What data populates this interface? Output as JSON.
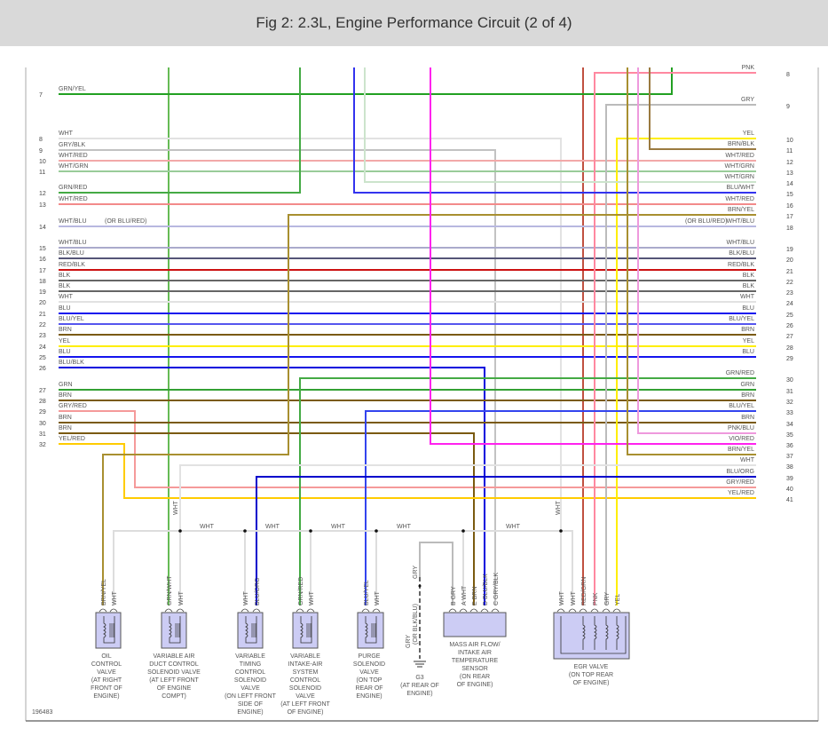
{
  "header": {
    "title": "Fig 2: 2.3L, Engine Performance Circuit (2 of 4)"
  },
  "figure_id": "196483",
  "note_or": "(OR BLU/RED)",
  "left_wires": [
    {
      "num": "7",
      "label": "GRN/YEL",
      "color": "#22a022"
    },
    {
      "num": "8",
      "label": "WHT",
      "color": "#e2e2e2"
    },
    {
      "num": "9",
      "label": "GRY/BLK",
      "color": "#c2c2c2"
    },
    {
      "num": "10",
      "label": "WHT/RED",
      "color": "#f2a8a8"
    },
    {
      "num": "11",
      "label": "WHT/GRN",
      "color": "#99cc99"
    },
    {
      "num": "12",
      "label": "GRN/RED",
      "color": "#44aa44"
    },
    {
      "num": "13",
      "label": "WHT/RED",
      "color": "#f38a8a"
    },
    {
      "num": "14",
      "label": "WHT/BLU",
      "color": "#b8b8e0"
    },
    {
      "num": "15",
      "label": "WHT/BLU",
      "color": "#aaaacc"
    },
    {
      "num": "16",
      "label": "BLK/BLU",
      "color": "#555577"
    },
    {
      "num": "17",
      "label": "RED/BLK",
      "color": "#cc1111"
    },
    {
      "num": "18",
      "label": "BLK",
      "color": "#666666"
    },
    {
      "num": "19",
      "label": "BLK",
      "color": "#666666"
    },
    {
      "num": "20",
      "label": "WHT",
      "color": "#e2e2e2"
    },
    {
      "num": "21",
      "label": "BLU",
      "color": "#1515ee"
    },
    {
      "num": "22",
      "label": "BLU/YEL",
      "color": "#5555ee"
    },
    {
      "num": "23",
      "label": "BRN",
      "color": "#7a5a10"
    },
    {
      "num": "24",
      "label": "YEL",
      "color": "#ffee00"
    },
    {
      "num": "25",
      "label": "BLU",
      "color": "#1515ee"
    },
    {
      "num": "26",
      "label": "BLU/BLK",
      "color": "#0000dd"
    },
    {
      "num": "27",
      "label": "GRN",
      "color": "#33a033"
    },
    {
      "num": "28",
      "label": "BRN",
      "color": "#7a5a10"
    },
    {
      "num": "29",
      "label": "GRY/RED",
      "color": "#f59a9a"
    },
    {
      "num": "30",
      "label": "BRN",
      "color": "#7a5a10"
    },
    {
      "num": "31",
      "label": "BRN",
      "color": "#7a5a10"
    },
    {
      "num": "32",
      "label": "YEL/RED",
      "color": "#ffcc00"
    }
  ],
  "right_wires": [
    {
      "num": "8",
      "label": "PNK",
      "color": "#ff88a0"
    },
    {
      "num": "9",
      "label": "GRY",
      "color": "#bbbbbb"
    },
    {
      "num": "10",
      "label": "YEL",
      "color": "#ffee00"
    },
    {
      "num": "11",
      "label": "BRN/BLK",
      "color": "#9a7a40"
    },
    {
      "num": "12",
      "label": "WHT/RED",
      "color": "#f2a8a8"
    },
    {
      "num": "13",
      "label": "WHT/GRN",
      "color": "#99cc99"
    },
    {
      "num": "14",
      "label": "WHT/GRN",
      "color": "#cce4cc"
    },
    {
      "num": "15",
      "label": "BLU/WHT",
      "color": "#3333ee"
    },
    {
      "num": "16",
      "label": "WHT/RED",
      "color": "#f38a8a"
    },
    {
      "num": "17",
      "label": "BRN/YEL",
      "color": "#a88f30"
    },
    {
      "num": "18",
      "label": "WHT/BLU",
      "color": "#b8b8e0"
    },
    {
      "num": "19",
      "label": "WHT/BLU",
      "color": "#aaaacc"
    },
    {
      "num": "20",
      "label": "BLK/BLU",
      "color": "#555577"
    },
    {
      "num": "21",
      "label": "RED/BLK",
      "color": "#cc1111"
    },
    {
      "num": "22",
      "label": "BLK",
      "color": "#666666"
    },
    {
      "num": "23",
      "label": "BLK",
      "color": "#666666"
    },
    {
      "num": "24",
      "label": "WHT",
      "color": "#e2e2e2"
    },
    {
      "num": "25",
      "label": "BLU",
      "color": "#1515ee"
    },
    {
      "num": "26",
      "label": "BLU/YEL",
      "color": "#5555ee"
    },
    {
      "num": "27",
      "label": "BRN",
      "color": "#7a5a10"
    },
    {
      "num": "28",
      "label": "YEL",
      "color": "#ffee00"
    },
    {
      "num": "29",
      "label": "BLU",
      "color": "#1515ee"
    },
    {
      "num": "30",
      "label": "GRN/RED",
      "color": "#44aa44"
    },
    {
      "num": "31",
      "label": "GRN",
      "color": "#33a033"
    },
    {
      "num": "32",
      "label": "BRN",
      "color": "#7a5a10"
    },
    {
      "num": "33",
      "label": "BLU/YEL",
      "color": "#3344ee"
    },
    {
      "num": "34",
      "label": "BRN",
      "color": "#7a5a10"
    },
    {
      "num": "35",
      "label": "PNK/BLU",
      "color": "#ee99dd"
    },
    {
      "num": "36",
      "label": "VIO/RED",
      "color": "#ff22ee"
    },
    {
      "num": "37",
      "label": "BRN/YEL",
      "color": "#a88f30"
    },
    {
      "num": "38",
      "label": "WHT",
      "color": "#e2e2e2"
    },
    {
      "num": "39",
      "label": "BLU/ORG",
      "color": "#0000cc"
    },
    {
      "num": "40",
      "label": "GRY/RED",
      "color": "#f59a9a"
    },
    {
      "num": "41",
      "label": "YEL/RED",
      "color": "#ffcc00"
    }
  ],
  "other_wires": [
    {
      "label": "GRN/WHT",
      "color": "#66bb55"
    },
    {
      "label": "RED/GRN",
      "color": "#c05040"
    }
  ],
  "bus": {
    "label": "WHT",
    "color": "#dddddd",
    "vertical_labels": [
      "WHT",
      "WHT"
    ]
  },
  "components": [
    {
      "name": "oil-control-valve",
      "pins": [
        "BRN/YEL",
        "WHT"
      ],
      "label": [
        "OIL",
        "CONTROL",
        "VALVE",
        "(AT RIGHT",
        "FRONT OF",
        "ENGINE)"
      ]
    },
    {
      "name": "variable-air-duct-control-solenoid-valve",
      "pins": [
        "GRN/WHT",
        "WHT"
      ],
      "label": [
        "VARIABLE AIR",
        "DUCT CONTROL",
        "SOLENOID VALVE",
        "(AT LEFT FRONT",
        "OF ENGINE",
        "COMPT)"
      ]
    },
    {
      "name": "variable-timing-control-solenoid-valve",
      "pins": [
        "WHT",
        "BLU/ORG"
      ],
      "label": [
        "VARIABLE",
        "TIMING",
        "CONTROL",
        "SOLENOID",
        "VALVE",
        "(ON LEFT FRONT",
        "SIDE OF",
        "ENGINE)"
      ]
    },
    {
      "name": "variable-intake-air-system-control-solenoid-valve",
      "pins": [
        "GRN/RED",
        "WHT"
      ],
      "label": [
        "VARIABLE",
        "INTAKE-AIR",
        "SYSTEM",
        "CONTROL",
        "SOLENOID",
        "VALVE",
        "(AT LEFT FRONT",
        "OF ENGINE)"
      ]
    },
    {
      "name": "purge-solenoid-valve",
      "pins": [
        "BLU/YEL",
        "WHT"
      ],
      "label": [
        "PURGE",
        "SOLENOID",
        "VALVE",
        "(ON TOP",
        "REAR OF",
        "ENGINE)"
      ]
    },
    {
      "name": "mass-air-flow-sensor",
      "pins": [
        "B  GRY",
        "A  WHT",
        "E  BRN",
        "D  BLU/BLK",
        "C  GRY/BLK"
      ],
      "label": [
        "MASS AIR FLOW/",
        "INTAKE AIR",
        "TEMPERATURE",
        "SENSOR",
        "(ON REAR",
        "OF ENGINE)"
      ]
    },
    {
      "name": "egr-valve",
      "pins": [
        "WHT",
        "WHT",
        "RED/GRN",
        "PNK",
        "GRY",
        "YEL"
      ],
      "label": [
        "EGR VALVE",
        "(ON TOP REAR",
        "OF ENGINE)"
      ]
    }
  ],
  "ground": {
    "wire_top": "GRY",
    "wire_bottom": "GRY",
    "alt": "(OR BLK/BLU)",
    "label": [
      "G3",
      "(AT REAR OF",
      "ENGINE)"
    ]
  }
}
